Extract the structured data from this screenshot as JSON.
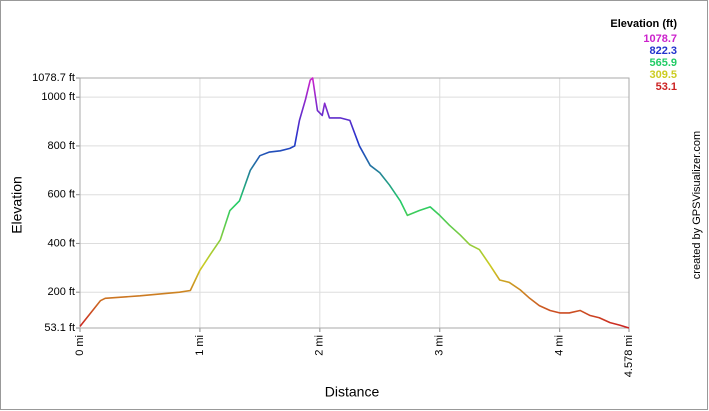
{
  "chart_data": {
    "type": "line",
    "x_label": "Distance",
    "y_label": "Elevation",
    "credit": "created by GPSVisualizer.com",
    "x": [
      0,
      0.17,
      0.21,
      0.5,
      0.83,
      0.92,
      1.0,
      1.08,
      1.17,
      1.25,
      1.33,
      1.42,
      1.5,
      1.58,
      1.67,
      1.75,
      1.79,
      1.83,
      1.88,
      1.92,
      1.94,
      1.98,
      2.02,
      2.04,
      2.08,
      2.17,
      2.25,
      2.33,
      2.42,
      2.5,
      2.58,
      2.67,
      2.73,
      2.83,
      2.92,
      3.0,
      3.08,
      3.17,
      3.25,
      3.33,
      3.42,
      3.5,
      3.58,
      3.67,
      3.75,
      3.83,
      3.92,
      4.0,
      4.08,
      4.17,
      4.25,
      4.33,
      4.42,
      4.5,
      4.578
    ],
    "series": [
      {
        "values": [
          60,
          165,
          175,
          185,
          200,
          207,
          290,
          350,
          415,
          535,
          575,
          700,
          760,
          775,
          780,
          790,
          800,
          905,
          990,
          1070,
          1078.7,
          945,
          925,
          975,
          915,
          915,
          905,
          800,
          720,
          690,
          640,
          575,
          515,
          535,
          550,
          515,
          475,
          435,
          395,
          375,
          310,
          250,
          240,
          210,
          175,
          145,
          125,
          115,
          115,
          125,
          105,
          95,
          75,
          65,
          53.1
        ]
      }
    ],
    "xlim": [
      0,
      4.578
    ],
    "ylim": [
      53.1,
      1078.7
    ],
    "xticks": [
      {
        "value": 0,
        "label": "0 mi"
      },
      {
        "value": 1,
        "label": "1 mi"
      },
      {
        "value": 2,
        "label": "2 mi"
      },
      {
        "value": 3,
        "label": "3 mi"
      },
      {
        "value": 4,
        "label": "4 mi"
      },
      {
        "value": 4.578,
        "label": "4.578 mi"
      }
    ],
    "yticks": [
      {
        "value": 53.1,
        "label": "53.1 ft"
      },
      {
        "value": 200,
        "label": "200 ft"
      },
      {
        "value": 400,
        "label": "400 ft"
      },
      {
        "value": 600,
        "label": "600 ft"
      },
      {
        "value": 800,
        "label": "800 ft"
      },
      {
        "value": 1000,
        "label": "1000 ft"
      },
      {
        "value": 1078.7,
        "label": "1078.7 ft"
      }
    ],
    "grid": true,
    "legend": {
      "title": "Elevation (ft)",
      "entries": [
        {
          "value": 1078.7,
          "color": "#cc22cc"
        },
        {
          "value": 822.3,
          "color": "#2233cc"
        },
        {
          "value": 565.9,
          "color": "#22cc66"
        },
        {
          "value": 309.5,
          "color": "#cccc22"
        },
        {
          "value": 53.1,
          "color": "#cc2222"
        }
      ]
    }
  }
}
